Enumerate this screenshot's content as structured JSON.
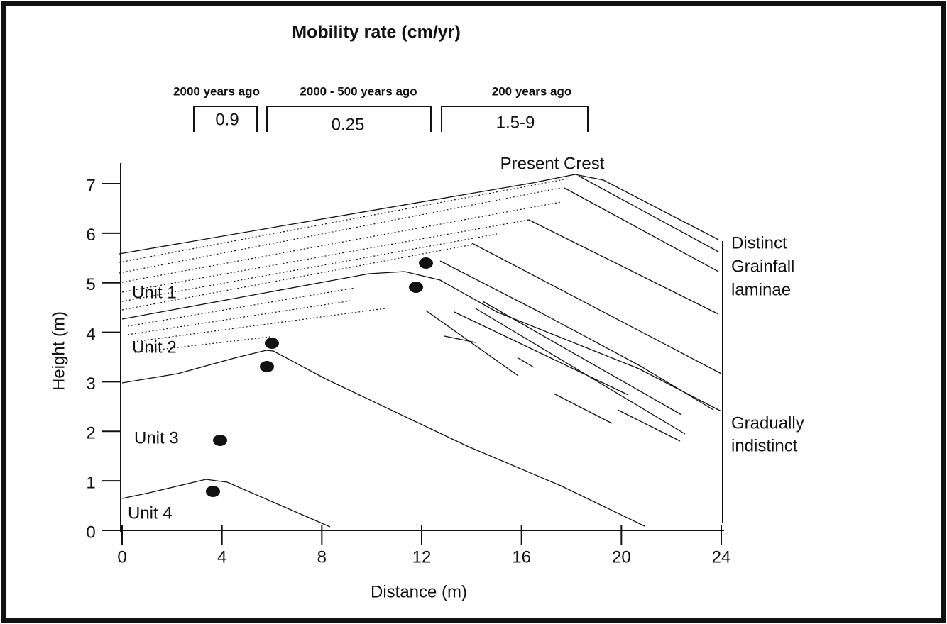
{
  "title": "Mobility rate (cm/yr)",
  "periods": [
    {
      "label": "2000 years ago",
      "rate": "0.9"
    },
    {
      "label": "2000 - 500 years ago",
      "rate": "0.25"
    },
    {
      "label": "200 years ago",
      "rate": "1.5-9"
    }
  ],
  "crest_label": "Present Crest",
  "units": [
    "Unit 1",
    "Unit 2",
    "Unit 3",
    "Unit 4"
  ],
  "right_labels": [
    [
      "Distinct",
      "Grainfall",
      "laminae"
    ],
    [
      "Gradually",
      "indistinct"
    ]
  ],
  "axes": {
    "xlabel": "Distance (m)",
    "ylabel": "Height (m)",
    "xlim": [
      0,
      24
    ],
    "xticks": [
      0,
      4,
      8,
      12,
      16,
      20,
      24
    ],
    "ylim": [
      0,
      7
    ],
    "yticks": [
      0,
      1,
      2,
      3,
      4,
      5,
      6,
      7
    ]
  }
}
